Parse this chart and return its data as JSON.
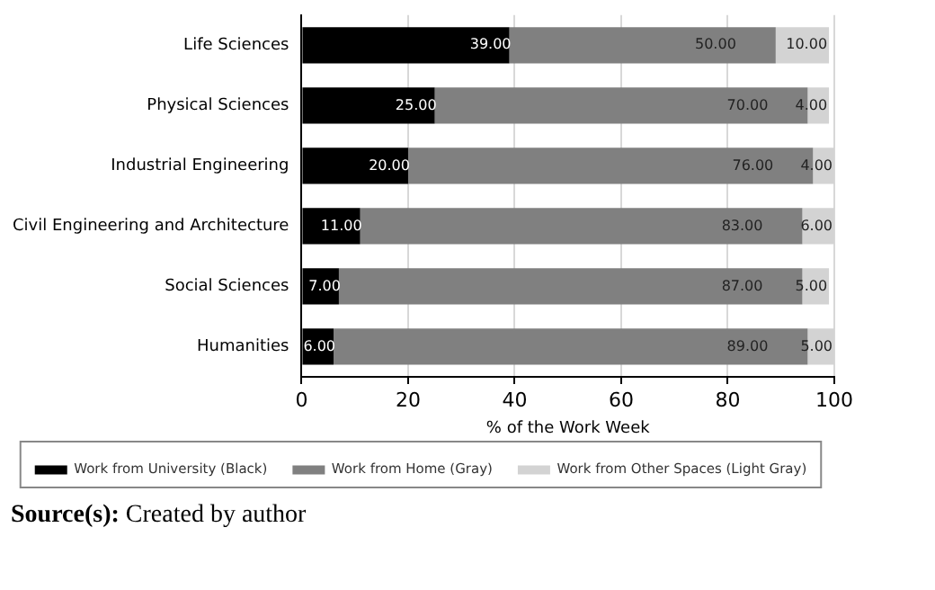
{
  "chart_data": {
    "type": "bar",
    "orientation": "horizontal",
    "stacked": true,
    "categories": [
      "Life Sciences",
      "Physical Sciences",
      "Industrial Engineering",
      "Civil Engineering and Architecture",
      "Social Sciences",
      "Humanities"
    ],
    "series": [
      {
        "name": "Work from University (Black)",
        "color": "#000000",
        "values": [
          39,
          25,
          20,
          11,
          7,
          6
        ],
        "value_labels": [
          "39.00",
          "25.00",
          "20.00",
          "11.00",
          "7.00",
          "6.00"
        ]
      },
      {
        "name": "Work from Home (Gray)",
        "color": "#808080",
        "values": [
          50,
          70,
          76,
          83,
          87,
          89
        ],
        "value_labels": [
          "50.00",
          "70.00",
          "76.00",
          "83.00",
          "87.00",
          "89.00"
        ]
      },
      {
        "name": "Work from Other Spaces (Light Gray)",
        "color": "#d3d3d3",
        "values": [
          10,
          4,
          4,
          6,
          5,
          5
        ],
        "value_labels": [
          "10.00",
          "4.00",
          "4.00",
          "6.00",
          "5.00",
          "5.00"
        ]
      }
    ],
    "xlabel": "% of the Work Week",
    "xlim": [
      0,
      100
    ],
    "xticks": [
      0,
      20,
      40,
      60,
      80,
      100
    ],
    "grid": "x",
    "legend": "bottom",
    "annotations": [
      "Source(s): Created by author"
    ]
  }
}
